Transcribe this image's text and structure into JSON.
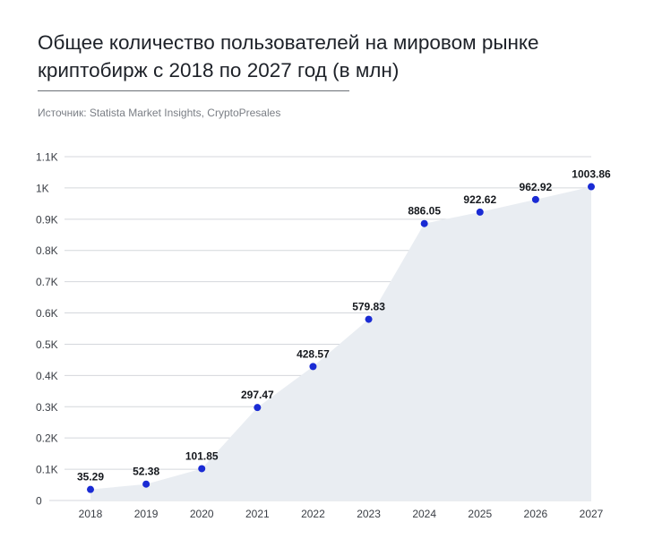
{
  "header": {
    "title": "Общее количество пользователей на мировом рынке криптобирж с 2018 по 2027 год (в млн)",
    "source": "Источник: Statista Market Insights, CryptoPresales"
  },
  "chart_data": {
    "type": "area",
    "categories": [
      "2018",
      "2019",
      "2020",
      "2021",
      "2022",
      "2023",
      "2024",
      "2025",
      "2026",
      "2027"
    ],
    "values": [
      35.29,
      52.38,
      101.85,
      297.47,
      428.57,
      579.83,
      886.05,
      922.62,
      962.92,
      1003.86
    ],
    "data_labels": [
      "35.29",
      "52.38",
      "101.85",
      "297.47",
      "428.57",
      "579.83",
      "886.05",
      "922.62",
      "962.92",
      "1003.86"
    ],
    "yticks": [
      0,
      100,
      200,
      300,
      400,
      500,
      600,
      700,
      800,
      900,
      1000,
      1100
    ],
    "ytick_labels": [
      "0",
      "0.1K",
      "0.2K",
      "0.3K",
      "0.4K",
      "0.5K",
      "0.6K",
      "0.7K",
      "0.8K",
      "0.9K",
      "1K",
      "1.1K"
    ],
    "ylim": [
      0,
      1100
    ],
    "grid": true,
    "colors": {
      "point": "#1a2bd4",
      "area": "#e9edf2",
      "grid": "#d4d7dc"
    }
  }
}
